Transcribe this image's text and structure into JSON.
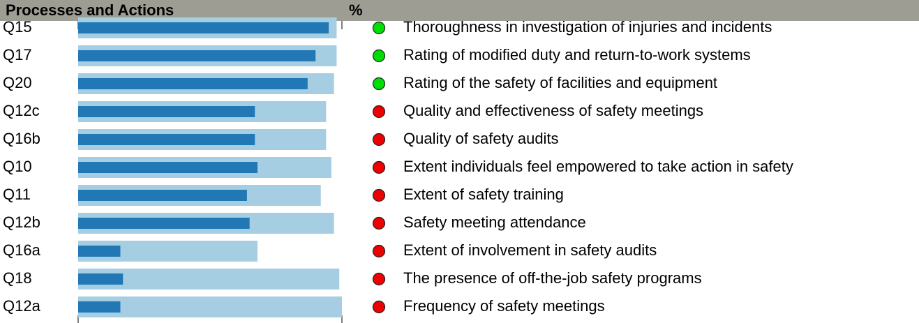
{
  "chart_data": {
    "type": "bar",
    "orientation": "horizontal",
    "title": "Processes and Actions",
    "value_header": "%",
    "categories": [
      "Q15",
      "Q17",
      "Q20",
      "Q12c",
      "Q16b",
      "Q10",
      "Q11",
      "Q12b",
      "Q16a",
      "Q18",
      "Q12a"
    ],
    "xlim": [
      0,
      100
    ],
    "series": [
      {
        "color": "#a6cee3",
        "values": [
          98,
          98,
          97,
          94,
          94,
          96,
          92,
          97,
          68,
          99,
          100
        ]
      },
      {
        "color": "#2278b5",
        "values": [
          95,
          90,
          87,
          67,
          67,
          68,
          64,
          65,
          16,
          17,
          16
        ]
      }
    ],
    "marker_colors": [
      "#00dd00",
      "#00dd00",
      "#00dd00",
      "#ee0000",
      "#ee0000",
      "#ee0000",
      "#ee0000",
      "#ee0000",
      "#ee0000",
      "#ee0000",
      "#ee0000"
    ],
    "descriptions": [
      "Thoroughness in investigation of injuries and incidents",
      "Rating of modified duty and return-to-work systems",
      "Rating of the safety of facilities and equipment",
      "Quality and effectiveness of safety meetings",
      "Quality of safety audits",
      "Extent individuals feel empowered to take action in safety",
      "Extent of safety training",
      "Safety meeting attendance",
      "Extent of involvement in safety audits",
      "The presence of off-the-job safety programs",
      "Frequency of safety meetings"
    ]
  }
}
